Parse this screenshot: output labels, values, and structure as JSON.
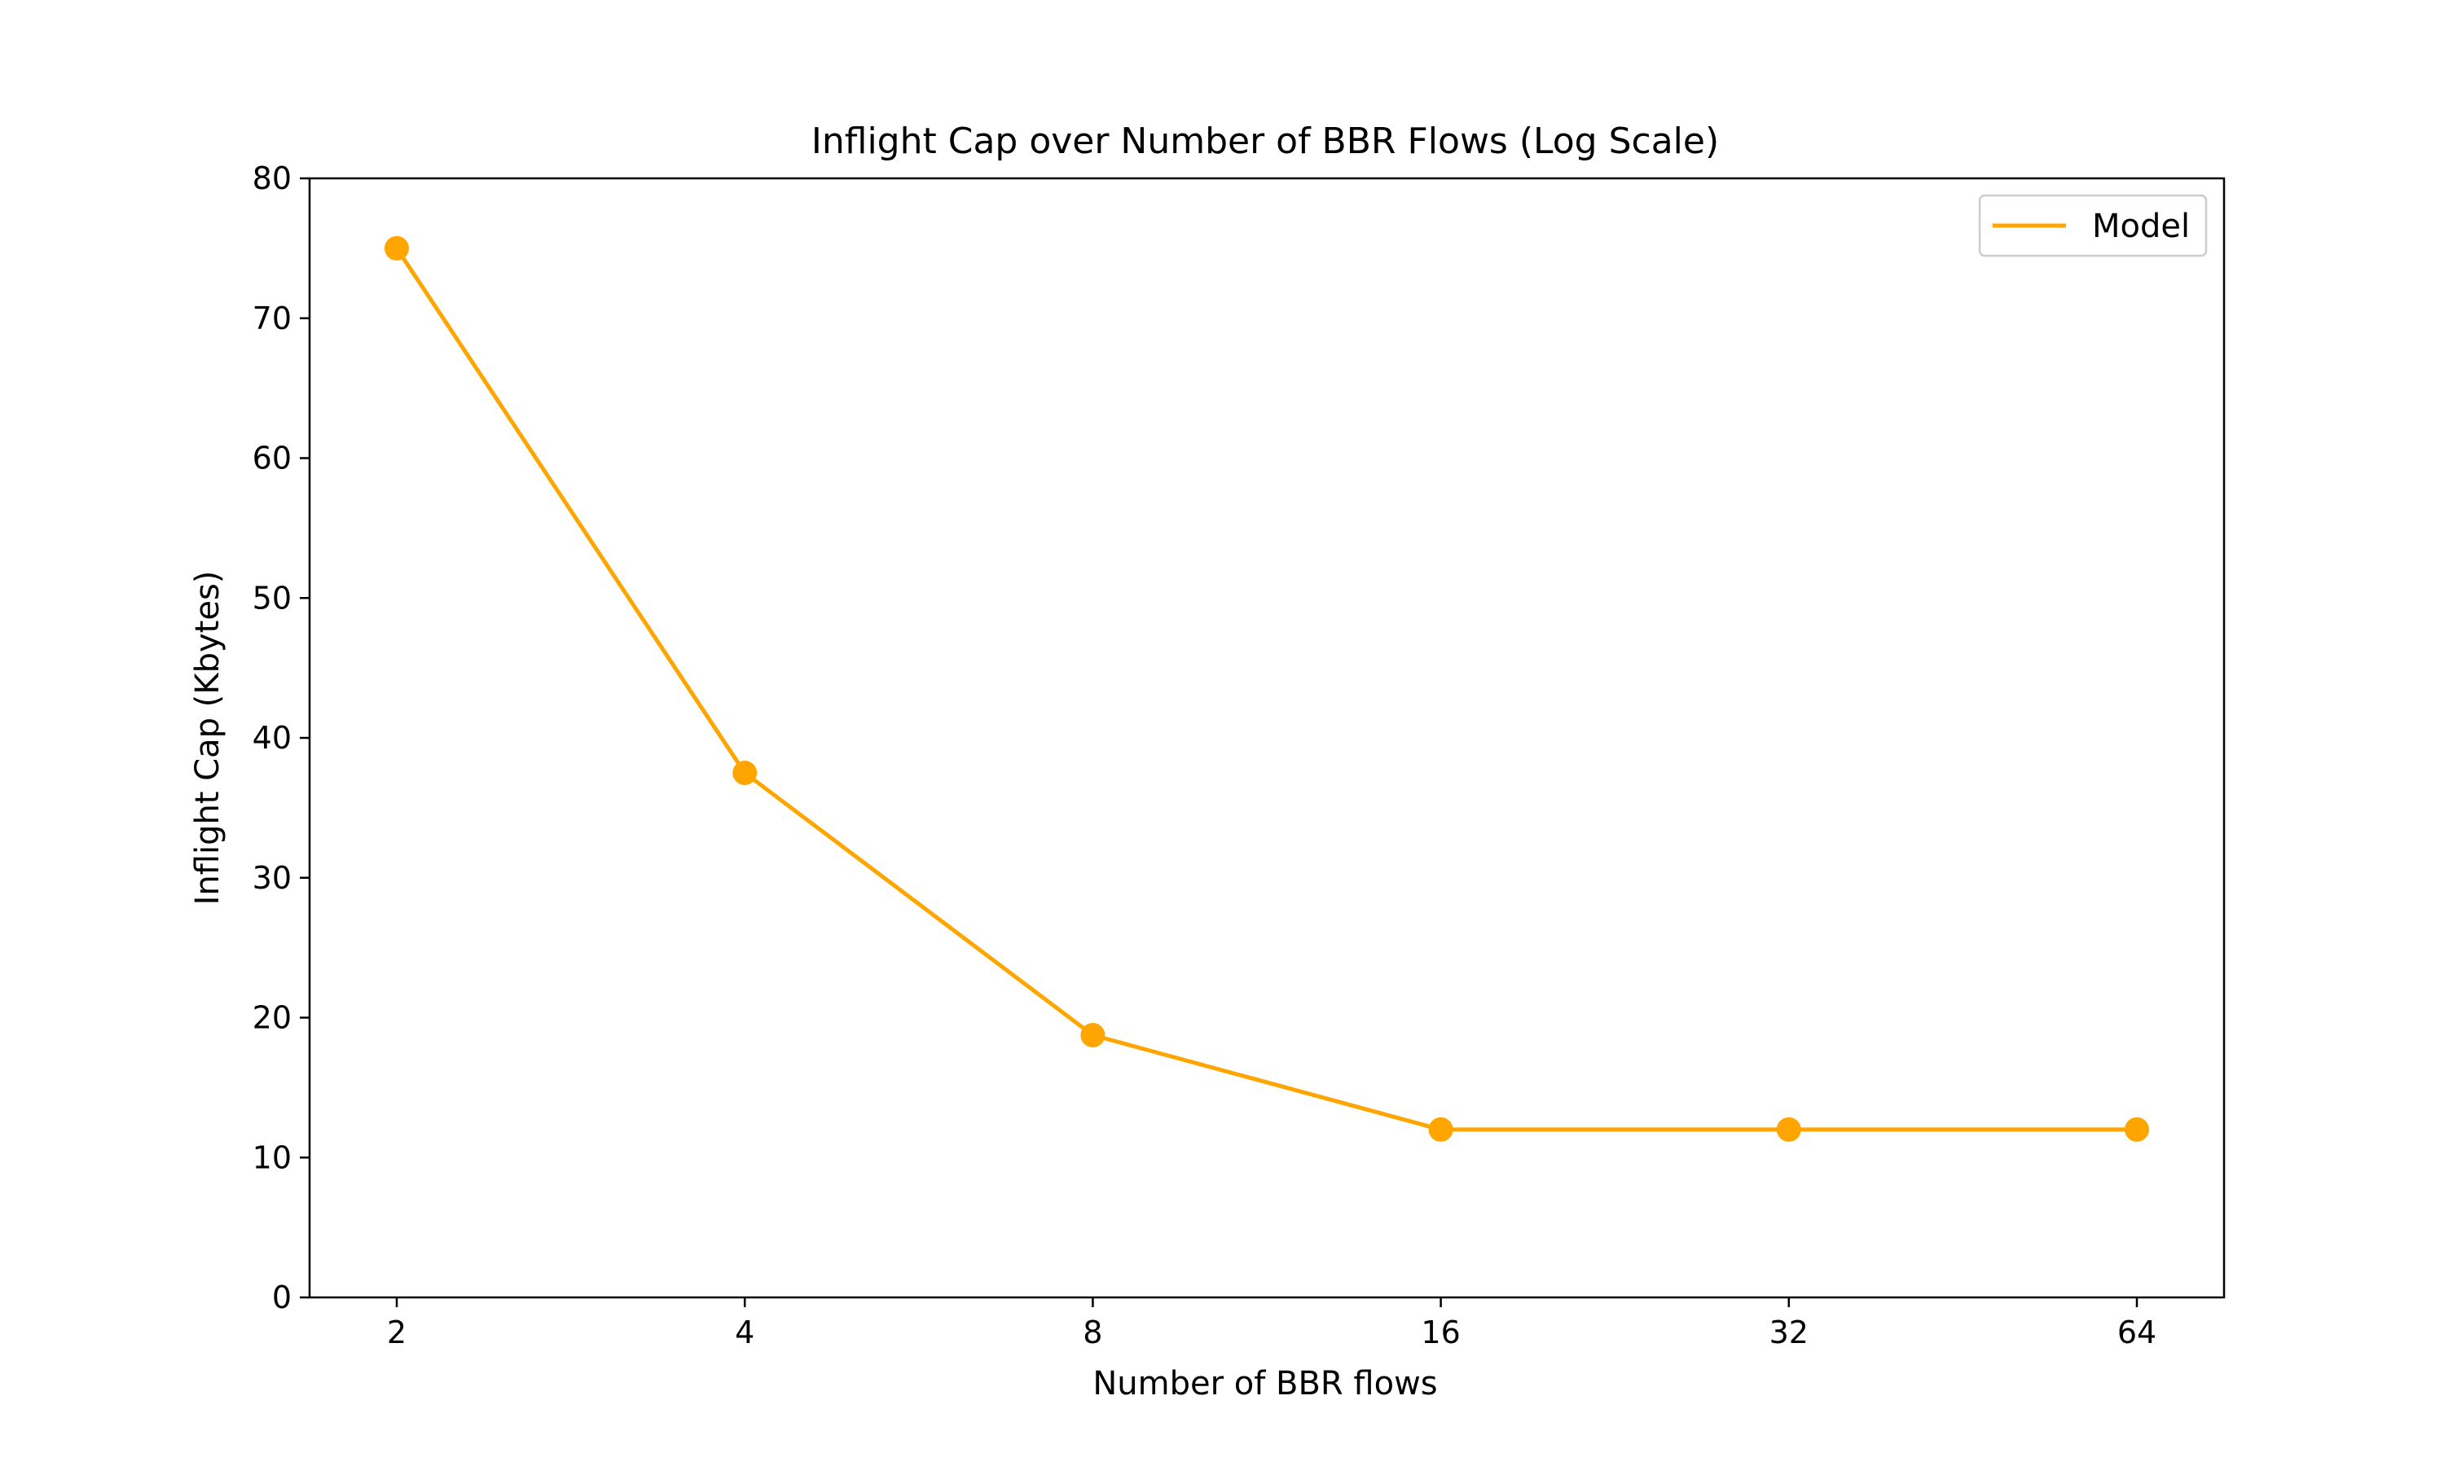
{
  "chart_data": {
    "type": "line",
    "title": "Inflight Cap over Number of BBR Flows (Log Scale)",
    "xlabel": "Number of BBR flows",
    "ylabel": "Inflight Cap (Kbytes)",
    "x_scale": "log2",
    "x": [
      2,
      4,
      8,
      16,
      32,
      64
    ],
    "x_tick_labels": [
      "2",
      "4",
      "8",
      "16",
      "32",
      "64"
    ],
    "y_ticks": [
      0,
      10,
      20,
      30,
      40,
      50,
      60,
      70,
      80
    ],
    "y_tick_labels": [
      "0",
      "10",
      "20",
      "30",
      "40",
      "50",
      "60",
      "70",
      "80"
    ],
    "ylim": [
      0,
      80
    ],
    "grid": false,
    "legend_position": "top-right",
    "series": [
      {
        "name": "Model",
        "color": "#ffa500",
        "marker": "circle",
        "values": [
          75,
          37.5,
          18.75,
          12,
          12,
          12
        ]
      }
    ]
  }
}
